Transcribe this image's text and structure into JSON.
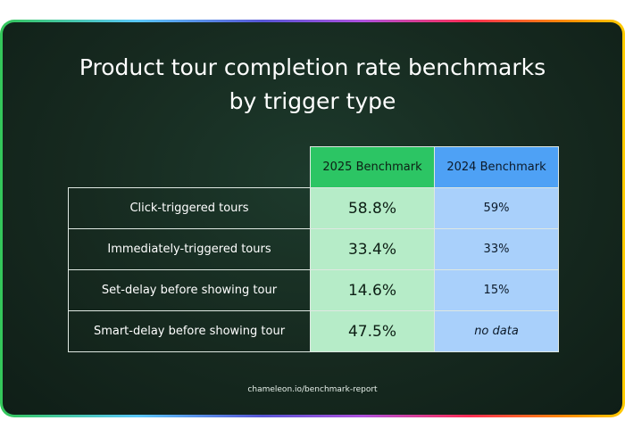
{
  "title": {
    "line1": "Product tour completion rate benchmarks",
    "line2": "by trigger type"
  },
  "table": {
    "headers": [
      "2025 Benchmark",
      "2024 Benchmark"
    ],
    "rows": [
      {
        "label": "Click-triggered tours",
        "v2025": "58.8%",
        "v2024": "59%"
      },
      {
        "label": "Immediately-triggered tours",
        "v2025": "33.4%",
        "v2024": "33%"
      },
      {
        "label": "Set-delay before showing tour",
        "v2025": "14.6%",
        "v2024": "15%"
      },
      {
        "label": "Smart-delay before showing tour",
        "v2025": "47.5%",
        "v2024": "no data"
      }
    ]
  },
  "footer": "chameleon.io/benchmark-report",
  "colors": {
    "background": "#16291f",
    "header_2025": "#2cc564",
    "header_2024": "#4ea1f5",
    "cell_2025": "#b6ecc8",
    "cell_2024": "#a9d0fb"
  }
}
